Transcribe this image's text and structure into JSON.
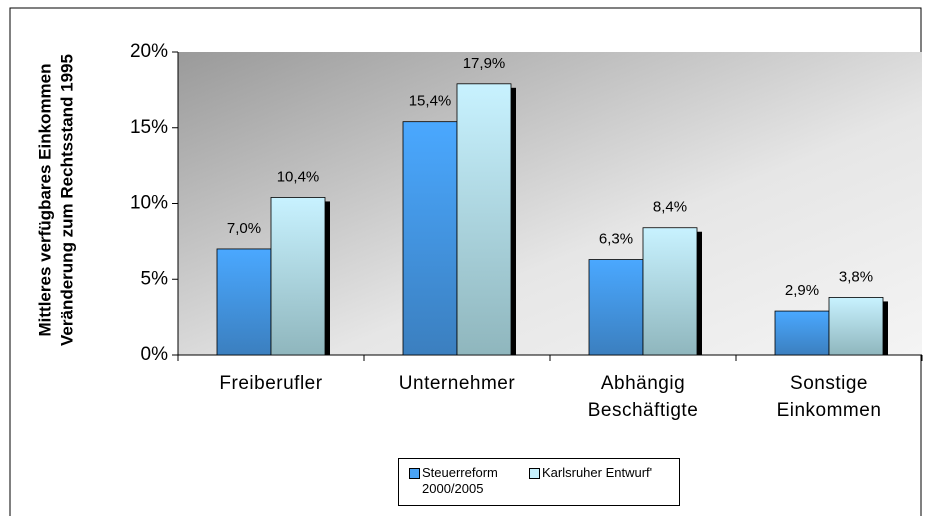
{
  "chart_data": {
    "type": "bar",
    "ylabel": [
      "Mittleres verfügbares Einkommen",
      "Veränderung zum Rechtsstand 1995"
    ],
    "categories": [
      [
        "Freiberufler"
      ],
      [
        "Unternehmer"
      ],
      [
        "Abhängig",
        "Beschäftigte"
      ],
      [
        "Sonstige",
        "Einkommen"
      ]
    ],
    "series": [
      {
        "name": "Steuerreform 2000/2005",
        "color": "#4aa3f5",
        "values": [
          7.0,
          15.4,
          6.3,
          2.9
        ],
        "value_labels": [
          "7,0%",
          "15,4%",
          "6,3%",
          "2,9%"
        ]
      },
      {
        "name": "Karlsruher Entwurf'",
        "color": "#c6f0fc",
        "values": [
          10.4,
          17.9,
          8.4,
          3.8
        ],
        "value_labels": [
          "10,4%",
          "17,9%",
          "8,4%",
          "3,8%"
        ]
      }
    ],
    "ylim": [
      0,
      20
    ],
    "yticks": [
      {
        "value": 0,
        "label": "0%"
      },
      {
        "value": 5,
        "label": "5%"
      },
      {
        "value": 10,
        "label": "10%"
      },
      {
        "value": 15,
        "label": "15%"
      },
      {
        "value": 20,
        "label": "20%"
      }
    ]
  }
}
